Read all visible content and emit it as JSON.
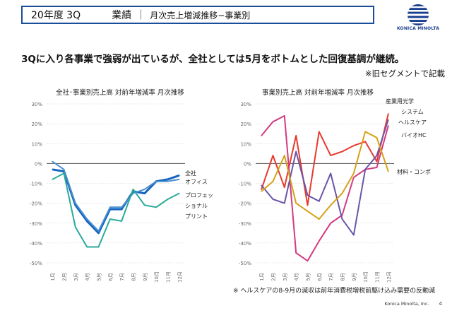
{
  "header": {
    "period": "20年度 3Q",
    "section": "業績",
    "separator": "｜",
    "subtitle": "月次売上増減推移−事業別",
    "logo_text": "KONICA MINOLTA"
  },
  "headline": "3Qに入り各事業で強弱が出ているが、全社としては5月をボトムとした回復基調が継続。",
  "note_top": "※旧セグメントで記載",
  "footnote": "※ ヘルスケアの8-9月の減収は前年消費税増税前駆け込み需要の反動減",
  "footer": {
    "company": "Konica Minolta, Inc.",
    "page": "4"
  },
  "colors": {
    "total": "#1565c0",
    "office": "#4a8fd0",
    "print": "#2aaa9a",
    "industrial": "#e8392e",
    "health": "#7b2d99",
    "system": "#6a55a8",
    "material": "#d33a80",
    "bio": "#d6a118",
    "axis": "#999999"
  },
  "chart_data": [
    {
      "type": "line",
      "title": "全社･事業別売上高 対前年増減率 月次推移",
      "categories": [
        "1月",
        "2月",
        "3月",
        "4月",
        "5月",
        "6月",
        "7月",
        "8月",
        "9月",
        "10月",
        "11月",
        "12月"
      ],
      "ylim": [
        -50,
        30
      ],
      "yticks": [
        "30%",
        "20%",
        "10%",
        "0%",
        "-10%",
        "-20%",
        "-30%",
        "-40%",
        "-50%"
      ],
      "series": [
        {
          "name": "全社",
          "color": "#1565c0",
          "values": [
            -3,
            -4,
            -21,
            -29,
            -35,
            -23,
            -23,
            -14,
            -15,
            -9,
            -8,
            -6
          ]
        },
        {
          "name": "オフィス",
          "color": "#4a8fd0",
          "values": [
            1,
            -3,
            -20,
            -28,
            -34,
            -22,
            -22,
            -15,
            -13,
            -9,
            -9,
            -8
          ]
        },
        {
          "name": "プロフェッショナルプリント",
          "color": "#2aaa9a",
          "values": [
            -8,
            -5,
            -32,
            -42,
            -42,
            -28,
            -29,
            -13,
            -21,
            -22,
            -18,
            -15
          ]
        }
      ],
      "labels": [
        {
          "text": "全社",
          "series": 0
        },
        {
          "text": "オフィス",
          "series": 1
        },
        {
          "text": "プロフェッ",
          "series": 2
        },
        {
          "text": "ショナル",
          "series": 2
        },
        {
          "text": "プリント",
          "series": 2
        }
      ]
    },
    {
      "type": "line",
      "title": "事業別売上高 対前年増減率 月次推移",
      "categories": [
        "1月",
        "2月",
        "3月",
        "4月",
        "5月",
        "6月",
        "7月",
        "8月",
        "9月",
        "10月",
        "11月",
        "12月"
      ],
      "ylim": [
        -50,
        30
      ],
      "yticks": [
        "30%",
        "20%",
        "10%",
        "0%",
        "-10%",
        "-20%",
        "-30%",
        "-40%",
        "-50%"
      ],
      "series": [
        {
          "name": "産業用光学システム",
          "color": "#e8392e",
          "values": [
            -13,
            4,
            -12,
            14,
            -21,
            16,
            4,
            6,
            9,
            11,
            1,
            25
          ]
        },
        {
          "name": "ヘルスケア",
          "color": "#d33a80",
          "values": [
            14,
            21,
            24,
            -45,
            -49,
            -39,
            -30,
            -26,
            -7,
            -3,
            -2,
            19
          ]
        },
        {
          "name": "バイオHC",
          "color": "#6a55a8",
          "values": [
            -11,
            -18,
            -20,
            6,
            -16,
            -19,
            -5,
            -28,
            -36,
            -3,
            4,
            22
          ]
        },
        {
          "name": "材料・コンポ",
          "color": "#d6a118",
          "values": [
            -14,
            -9,
            4,
            -20,
            -24,
            -28,
            -21,
            -15,
            -5,
            16,
            13,
            -4
          ]
        }
      ],
      "labels": [
        {
          "text": "産業用光学",
          "series": 0
        },
        {
          "text": "システム",
          "series": 0
        },
        {
          "text": "ヘルスケア",
          "series": 1
        },
        {
          "text": "バイオHC",
          "series": 2
        },
        {
          "text": "材料・コンポ",
          "series": 3
        }
      ]
    }
  ]
}
